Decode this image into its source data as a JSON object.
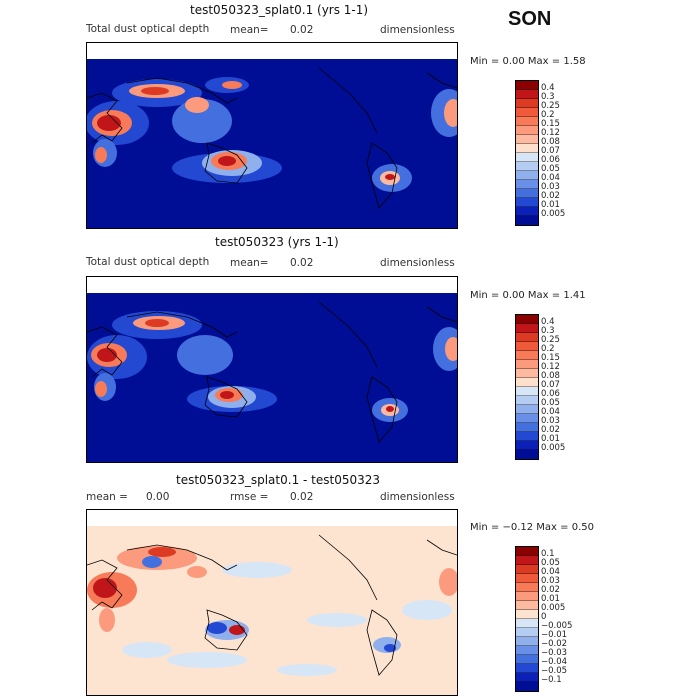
{
  "season": "SON",
  "panels": [
    {
      "title": "test050323_splat0.1 (yrs 1-1)",
      "variable": "Total dust optical depth",
      "stat1_label": "mean=",
      "stat1_value": "0.02",
      "units": "dimensionless",
      "minmax": "Min =    0.00 Max =    1.58",
      "colorbar": {
        "labels": [
          "0.4",
          "0.3",
          "0.25",
          "0.2",
          "0.15",
          "0.12",
          "0.08",
          "0.07",
          "0.06",
          "0.05",
          "0.04",
          "0.03",
          "0.02",
          "0.01",
          "0.005"
        ],
        "colors": [
          "#8b0000",
          "#c0161a",
          "#dc3a22",
          "#ee5a3a",
          "#f77b58",
          "#fb9a7c",
          "#fcbba1",
          "#fde0cc",
          "#d6e6f7",
          "#b5cdf2",
          "#8fb0ec",
          "#6a8fe6",
          "#4470df",
          "#2348d2",
          "#0a20b8",
          "#000e96"
        ]
      }
    },
    {
      "title": "test050323 (yrs 1-1)",
      "variable": "Total dust optical depth",
      "stat1_label": "mean=",
      "stat1_value": "0.02",
      "units": "dimensionless",
      "minmax": "Min =    0.00 Max =    1.41",
      "colorbar": {
        "labels": [
          "0.4",
          "0.3",
          "0.25",
          "0.2",
          "0.15",
          "0.12",
          "0.08",
          "0.07",
          "0.06",
          "0.05",
          "0.04",
          "0.03",
          "0.02",
          "0.01",
          "0.005"
        ],
        "colors": [
          "#8b0000",
          "#c0161a",
          "#dc3a22",
          "#ee5a3a",
          "#f77b58",
          "#fb9a7c",
          "#fcbba1",
          "#fde0cc",
          "#d6e6f7",
          "#b5cdf2",
          "#8fb0ec",
          "#6a8fe6",
          "#4470df",
          "#2348d2",
          "#0a20b8",
          "#000e96"
        ]
      }
    },
    {
      "title": "test050323_splat0.1 - test050323",
      "stat1_label": "mean =",
      "stat1_value": "0.00",
      "stat2_label": "rmse =",
      "stat2_value": "0.02",
      "units": "dimensionless",
      "minmax": "Min =  −0.12 Max =    0.50",
      "colorbar": {
        "labels": [
          "0.1",
          "0.05",
          "0.04",
          "0.03",
          "0.02",
          "0.01",
          "0.005",
          "0",
          "−0.005",
          "−0.01",
          "−0.02",
          "−0.03",
          "−0.04",
          "−0.05",
          "−0.1"
        ],
        "colors": [
          "#8b0000",
          "#c0161a",
          "#dc3a22",
          "#ee5a3a",
          "#f77b58",
          "#fb9a7c",
          "#fcbba1",
          "#fde4d0",
          "#d6e6f7",
          "#b5cdf2",
          "#8fb0ec",
          "#6a8fe6",
          "#4470df",
          "#2348d2",
          "#0a20b8",
          "#000e96"
        ]
      }
    }
  ]
}
